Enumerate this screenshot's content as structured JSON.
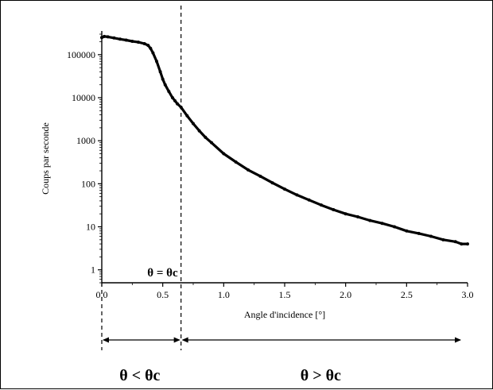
{
  "chart_data": {
    "type": "scatter",
    "title": "",
    "xlabel": "Angle d'incidence [°]",
    "ylabel": "Coups par seconde",
    "xlim": [
      0.0,
      3.0
    ],
    "ylim": [
      0.5,
      300000
    ],
    "y_scale": "log",
    "x_ticks": [
      "0.0",
      "0.5",
      "1.0",
      "1.5",
      "2.0",
      "2.5",
      "3.0"
    ],
    "y_ticks": [
      "1",
      "10",
      "100",
      "1000",
      "10000",
      "100000"
    ],
    "critical_angle_deg": 0.65,
    "annotations": {
      "critical": "θ = θc",
      "below": "θ < θc",
      "above": "θ > θc"
    },
    "series": [
      {
        "x": [
          0.0,
          0.02,
          0.05,
          0.1,
          0.15,
          0.2,
          0.25,
          0.3,
          0.35,
          0.38,
          0.4,
          0.42,
          0.45,
          0.48,
          0.5,
          0.52,
          0.55,
          0.58,
          0.6,
          0.62,
          0.65,
          0.7,
          0.75,
          0.8,
          0.85,
          0.9,
          1.0,
          1.1,
          1.2,
          1.3,
          1.4,
          1.5,
          1.6,
          1.7,
          1.8,
          1.9,
          2.0,
          2.1,
          2.2,
          2.3,
          2.4,
          2.5,
          2.6,
          2.7,
          2.8,
          2.9,
          2.95,
          3.0
        ],
        "y": [
          250000,
          265000,
          260000,
          245000,
          230000,
          218000,
          205000,
          195000,
          180000,
          165000,
          140000,
          110000,
          70000,
          40000,
          27000,
          20000,
          14000,
          10000,
          8500,
          7200,
          6000,
          3800,
          2500,
          1700,
          1200,
          900,
          500,
          320,
          210,
          150,
          105,
          75,
          55,
          42,
          32,
          25,
          20,
          17,
          14,
          12,
          10,
          8,
          7,
          6,
          5,
          4.5,
          4,
          4
        ]
      }
    ]
  }
}
